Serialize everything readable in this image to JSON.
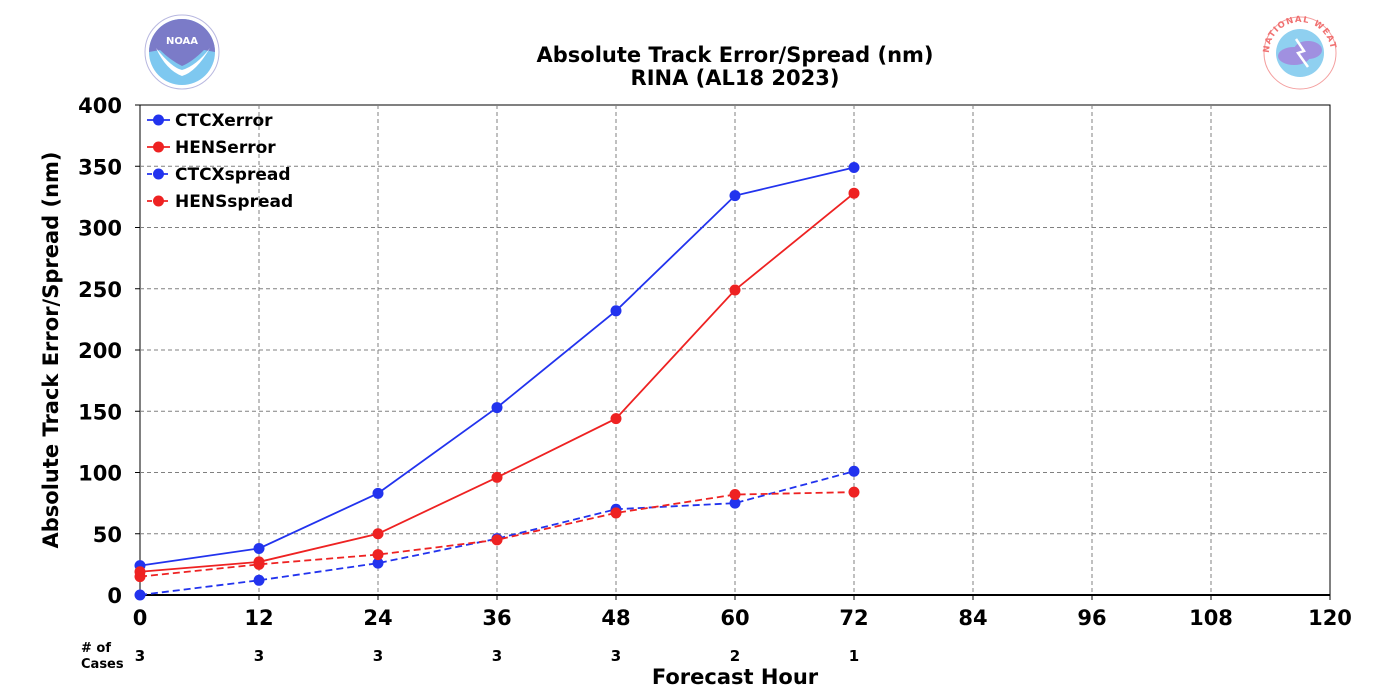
{
  "chart_data": {
    "type": "line",
    "title_line1": "Absolute Track Error/Spread (nm)",
    "title_line2": "RINA (AL18 2023)",
    "xlabel": "Forecast Hour",
    "ylabel": "Absolute Track Error/Spread (nm)",
    "xlim": [
      0,
      120
    ],
    "ylim": [
      0,
      400
    ],
    "x_ticks": [
      0,
      12,
      24,
      36,
      48,
      60,
      72,
      84,
      96,
      108,
      120
    ],
    "y_ticks": [
      0,
      50,
      100,
      150,
      200,
      250,
      300,
      350,
      400
    ],
    "grid": true,
    "legend_position": "top-left",
    "cases_label": [
      "# of",
      "Cases"
    ],
    "cases": [
      {
        "x": 0,
        "n": "3"
      },
      {
        "x": 12,
        "n": "3"
      },
      {
        "x": 24,
        "n": "3"
      },
      {
        "x": 36,
        "n": "3"
      },
      {
        "x": 48,
        "n": "3"
      },
      {
        "x": 60,
        "n": "2"
      },
      {
        "x": 72,
        "n": "1"
      }
    ],
    "series": [
      {
        "name": "CTCXerror",
        "color": "#2233ee",
        "style": "solid",
        "x": [
          0,
          12,
          24,
          36,
          48,
          60,
          72
        ],
        "y": [
          24,
          38,
          83,
          153,
          232,
          326,
          349
        ]
      },
      {
        "name": "HENSerror",
        "color": "#ee2222",
        "style": "solid",
        "x": [
          0,
          12,
          24,
          36,
          48,
          60,
          72
        ],
        "y": [
          19,
          27,
          50,
          96,
          144,
          249,
          328
        ]
      },
      {
        "name": "CTCXspread",
        "color": "#2233ee",
        "style": "dashed",
        "x": [
          0,
          12,
          24,
          36,
          48,
          60,
          72
        ],
        "y": [
          0,
          12,
          26,
          46,
          70,
          75,
          101
        ]
      },
      {
        "name": "HENSspread",
        "color": "#ee2222",
        "style": "dashed",
        "x": [
          0,
          12,
          24,
          36,
          48,
          60,
          72
        ],
        "y": [
          15,
          25,
          33,
          45,
          67,
          82,
          84
        ]
      }
    ]
  },
  "logos": {
    "noaa": {
      "text": "NOAA",
      "colors": [
        "#7b7bc8",
        "#7ec8f0"
      ]
    },
    "nws": {
      "ring_text": "NATIONAL WEATHER SERVICE",
      "colors": [
        "#f08080",
        "#8fd0f0",
        "#a090e0"
      ]
    }
  }
}
